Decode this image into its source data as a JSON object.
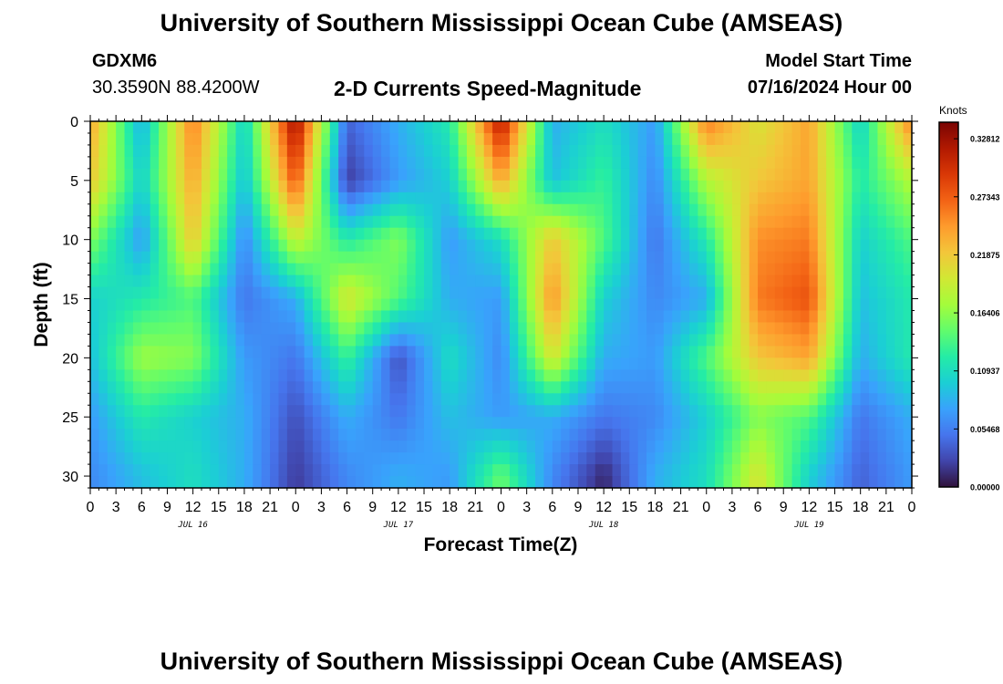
{
  "header": {
    "title": "University of Southern Mississippi Ocean Cube (AMSEAS)",
    "station_id": "GDXM6",
    "coordinates": "30.3590N  88.4200W",
    "plot_title": "2-D Currents Speed-Magnitude",
    "model_start_label": "Model Start Time",
    "model_start_value": "07/16/2024 Hour 00"
  },
  "footer": {
    "title": "University of Southern Mississippi Ocean Cube (AMSEAS)"
  },
  "colors": {
    "background": "#ffffff",
    "colormap": [
      "#30123b",
      "#4145ab",
      "#4675ed",
      "#39a2fc",
      "#1bcfd4",
      "#24eca6",
      "#61fc6c",
      "#a4fc3b",
      "#d1e834",
      "#f3c63a",
      "#fe9b2d",
      "#f36315",
      "#d93806",
      "#b11901",
      "#7a0403"
    ]
  },
  "chart_data": {
    "type": "heatmap",
    "xlabel": "Forecast Time(Z)",
    "ylabel": "Depth (ft)",
    "x_range_hours": [
      0,
      96
    ],
    "y_range_ft": [
      0,
      31
    ],
    "x_tick_labels": [
      "0",
      "3",
      "6",
      "9",
      "12",
      "15",
      "18",
      "21",
      "0",
      "3",
      "6",
      "9",
      "12",
      "15",
      "18",
      "21",
      "0",
      "3",
      "6",
      "9",
      "12",
      "15",
      "18",
      "21",
      "0",
      "3",
      "6",
      "9",
      "12",
      "15",
      "18",
      "21",
      "0"
    ],
    "y_ticks": [
      0,
      5,
      10,
      15,
      20,
      25,
      30
    ],
    "date_labels": [
      {
        "label": "JUL 16",
        "hour": 12
      },
      {
        "label": "JUL 17",
        "hour": 36
      },
      {
        "label": "JUL 18",
        "hour": 60
      },
      {
        "label": "JUL 19",
        "hour": 84
      }
    ],
    "colorbar": {
      "title": "Knots",
      "min": 0.0,
      "max": 0.3437,
      "ticks": [
        "0.32812",
        "0.27343",
        "0.21875",
        "0.16406",
        "0.10937",
        "0.05468",
        "0.00000"
      ],
      "tick_values": [
        0.32812,
        0.27343,
        0.21875,
        0.16406,
        0.10937,
        0.05468,
        0.0
      ]
    },
    "grid_note": "speed in knots; rows = depth 0,5,10,15,20,25,30 ft; columns = every 6 h from 0 to 96",
    "x_hours": [
      0,
      6,
      12,
      18,
      24,
      30,
      36,
      42,
      48,
      54,
      60,
      66,
      72,
      78,
      84,
      90,
      96
    ],
    "depths_ft": [
      0,
      5,
      10,
      15,
      20,
      25,
      30
    ],
    "speed_knots": [
      [
        0.24,
        0.08,
        0.26,
        0.1,
        0.33,
        0.04,
        0.08,
        0.12,
        0.32,
        0.08,
        0.11,
        0.07,
        0.26,
        0.2,
        0.24,
        0.1,
        0.26
      ],
      [
        0.22,
        0.1,
        0.24,
        0.09,
        0.28,
        0.02,
        0.07,
        0.1,
        0.24,
        0.09,
        0.13,
        0.06,
        0.18,
        0.22,
        0.24,
        0.12,
        0.18
      ],
      [
        0.16,
        0.07,
        0.22,
        0.06,
        0.19,
        0.12,
        0.16,
        0.07,
        0.11,
        0.22,
        0.14,
        0.05,
        0.12,
        0.25,
        0.26,
        0.1,
        0.14
      ],
      [
        0.1,
        0.12,
        0.14,
        0.05,
        0.08,
        0.2,
        0.14,
        0.08,
        0.07,
        0.25,
        0.1,
        0.06,
        0.08,
        0.26,
        0.28,
        0.09,
        0.12
      ],
      [
        0.09,
        0.17,
        0.16,
        0.07,
        0.05,
        0.13,
        0.03,
        0.11,
        0.06,
        0.2,
        0.08,
        0.07,
        0.14,
        0.22,
        0.24,
        0.08,
        0.12
      ],
      [
        0.07,
        0.12,
        0.1,
        0.08,
        0.03,
        0.08,
        0.05,
        0.09,
        0.07,
        0.08,
        0.05,
        0.06,
        0.1,
        0.16,
        0.14,
        0.05,
        0.08
      ],
      [
        0.06,
        0.09,
        0.11,
        0.08,
        0.02,
        0.06,
        0.08,
        0.07,
        0.15,
        0.06,
        0.01,
        0.08,
        0.11,
        0.2,
        0.1,
        0.04,
        0.07
      ]
    ]
  }
}
